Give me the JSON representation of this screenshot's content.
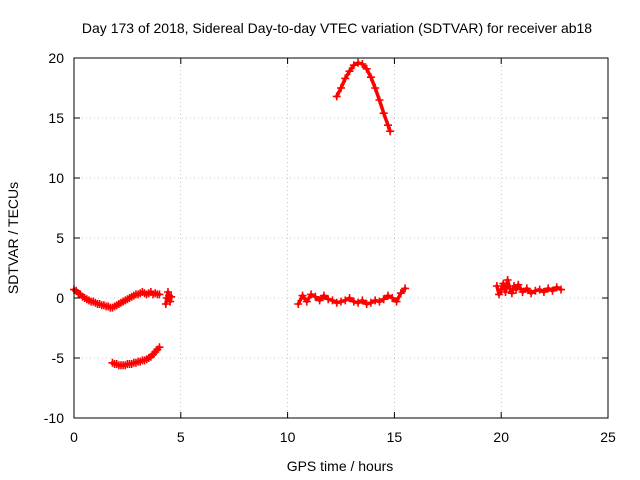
{
  "chart_data": {
    "type": "scatter",
    "title": "Day 173 of 2018, Sidereal Day-to-day VTEC variation (SDTVAR) for receiver ab18",
    "xlabel": "GPS time / hours",
    "ylabel": "SDTVAR / TECUs",
    "xlim": [
      0,
      25
    ],
    "ylim": [
      -10,
      20
    ],
    "xticks": [
      0,
      5,
      10,
      15,
      20,
      25
    ],
    "yticks": [
      -10,
      -5,
      0,
      5,
      10,
      15,
      20
    ],
    "xtick_labels": [
      "0",
      "5",
      "10",
      "15",
      "20",
      "25"
    ],
    "ytick_labels": [
      "-10",
      "-5",
      "0",
      "5",
      "10",
      "15",
      "20"
    ],
    "grid": true,
    "marker": "+",
    "color": "#ff0000",
    "series": [
      {
        "name": "segment-1",
        "x": [
          0.0,
          0.1,
          0.2,
          0.3,
          0.4,
          0.5,
          0.6,
          0.7,
          0.8,
          0.9,
          1.0,
          1.1,
          1.2,
          1.3,
          1.4,
          1.5,
          1.6,
          1.7,
          1.8,
          1.9,
          2.0,
          2.1,
          2.2,
          2.3,
          2.4,
          2.5,
          2.6,
          2.7,
          2.8,
          2.9,
          3.0,
          3.1,
          3.2,
          3.3,
          3.4,
          3.5,
          3.6,
          3.7,
          3.8,
          3.9,
          4.0
        ],
        "y": [
          0.7,
          0.6,
          0.4,
          0.3,
          0.1,
          0.0,
          -0.1,
          -0.2,
          -0.3,
          -0.3,
          -0.4,
          -0.5,
          -0.5,
          -0.6,
          -0.6,
          -0.7,
          -0.7,
          -0.8,
          -0.8,
          -0.7,
          -0.6,
          -0.5,
          -0.4,
          -0.3,
          -0.2,
          -0.1,
          0.0,
          0.1,
          0.2,
          0.3,
          0.3,
          0.4,
          0.5,
          0.4,
          0.3,
          0.4,
          0.5,
          0.3,
          0.4,
          0.3,
          0.3
        ]
      },
      {
        "name": "segment-2",
        "x": [
          4.3,
          4.35,
          4.4,
          4.45,
          4.5,
          4.55
        ],
        "y": [
          -0.5,
          0.0,
          0.5,
          0.2,
          -0.3,
          0.1
        ]
      },
      {
        "name": "segment-3",
        "x": [
          1.8,
          1.9,
          2.0,
          2.1,
          2.2,
          2.3,
          2.4,
          2.5,
          2.6,
          2.7,
          2.8,
          2.9,
          3.0,
          3.1,
          3.2,
          3.3,
          3.4,
          3.5,
          3.6,
          3.7,
          3.8,
          3.9,
          4.0
        ],
        "y": [
          -5.4,
          -5.5,
          -5.5,
          -5.6,
          -5.6,
          -5.6,
          -5.6,
          -5.5,
          -5.5,
          -5.5,
          -5.4,
          -5.4,
          -5.3,
          -5.3,
          -5.2,
          -5.2,
          -5.1,
          -5.0,
          -4.9,
          -4.7,
          -4.5,
          -4.3,
          -4.1
        ]
      },
      {
        "name": "segment-4",
        "x": [
          10.5,
          10.7,
          10.9,
          11.1,
          11.3,
          11.5,
          11.7,
          11.9,
          12.1,
          12.3,
          12.5,
          12.7,
          12.9,
          13.1,
          13.3,
          13.5,
          13.7,
          13.9,
          14.1,
          14.3,
          14.5,
          14.7,
          14.9,
          15.1,
          15.3,
          15.5
        ],
        "y": [
          -0.5,
          0.2,
          -0.3,
          0.3,
          0.1,
          -0.2,
          0.2,
          -0.1,
          -0.2,
          -0.4,
          -0.3,
          -0.2,
          0.0,
          -0.3,
          -0.4,
          -0.2,
          -0.5,
          -0.4,
          -0.2,
          -0.3,
          -0.1,
          0.2,
          0.0,
          -0.3,
          0.4,
          0.8
        ]
      },
      {
        "name": "segment-5",
        "x": [
          12.3,
          12.5,
          12.7,
          12.9,
          13.1,
          13.3,
          13.5,
          13.7,
          13.9,
          14.1,
          14.3,
          14.5,
          14.7,
          14.8
        ],
        "y": [
          16.8,
          17.5,
          18.3,
          18.9,
          19.4,
          19.6,
          19.5,
          19.1,
          18.4,
          17.5,
          16.5,
          15.4,
          14.4,
          13.9
        ]
      },
      {
        "name": "segment-6",
        "x": [
          19.8,
          19.9,
          20.0,
          20.1,
          20.2,
          20.3,
          20.4,
          20.5,
          20.6,
          20.7,
          20.8,
          21.0,
          21.2,
          21.4,
          21.6,
          21.8,
          22.0,
          22.2,
          22.4,
          22.6,
          22.8
        ],
        "y": [
          1.0,
          0.3,
          0.7,
          1.2,
          0.5,
          1.5,
          0.8,
          0.4,
          1.0,
          0.7,
          1.1,
          0.5,
          0.8,
          0.4,
          0.6,
          0.7,
          0.5,
          0.8,
          0.6,
          0.9,
          0.7
        ]
      }
    ]
  }
}
